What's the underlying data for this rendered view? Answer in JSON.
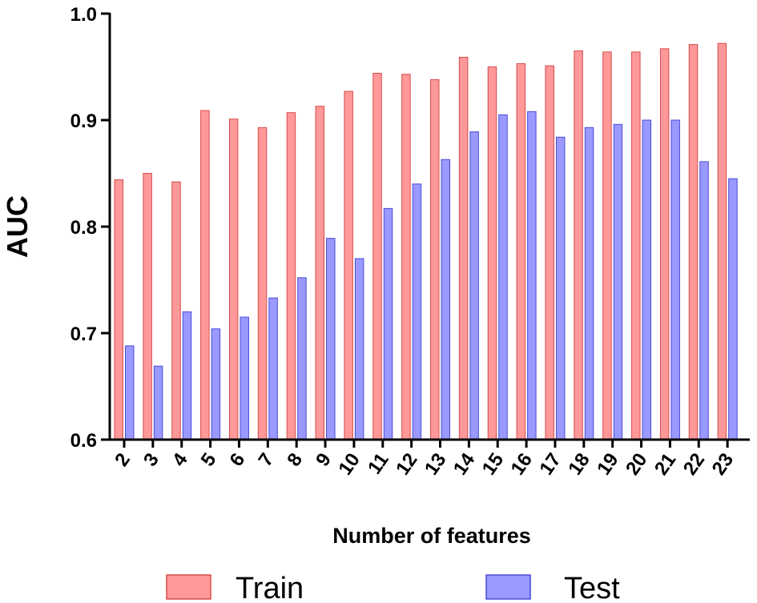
{
  "chart_data": {
    "type": "bar",
    "xlabel": "Number of features",
    "ylabel": "AUC",
    "ylim": [
      0.6,
      1.0
    ],
    "yticks": [
      "0.6",
      "0.7",
      "0.8",
      "0.9",
      "1.0"
    ],
    "categories": [
      "2",
      "3",
      "4",
      "5",
      "6",
      "7",
      "8",
      "9",
      "10",
      "11",
      "12",
      "13",
      "14",
      "15",
      "16",
      "17",
      "18",
      "19",
      "20",
      "21",
      "22",
      "23"
    ],
    "series": [
      {
        "name": "Train",
        "color": "#ff9999",
        "edge": "#d94a4a",
        "values": [
          0.844,
          0.85,
          0.842,
          0.909,
          0.901,
          0.893,
          0.907,
          0.913,
          0.927,
          0.944,
          0.943,
          0.938,
          0.959,
          0.95,
          0.953,
          0.951,
          0.965,
          0.964,
          0.964,
          0.967,
          0.971,
          0.972
        ]
      },
      {
        "name": "Test",
        "color": "#9999ff",
        "edge": "#4a4ad9",
        "values": [
          0.688,
          0.669,
          0.72,
          0.704,
          0.715,
          0.733,
          0.752,
          0.789,
          0.77,
          0.817,
          0.84,
          0.863,
          0.889,
          0.905,
          0.908,
          0.884,
          0.893,
          0.896,
          0.9,
          0.9,
          0.861,
          0.845
        ]
      }
    ],
    "legend_position": "bottom",
    "grid": false
  }
}
